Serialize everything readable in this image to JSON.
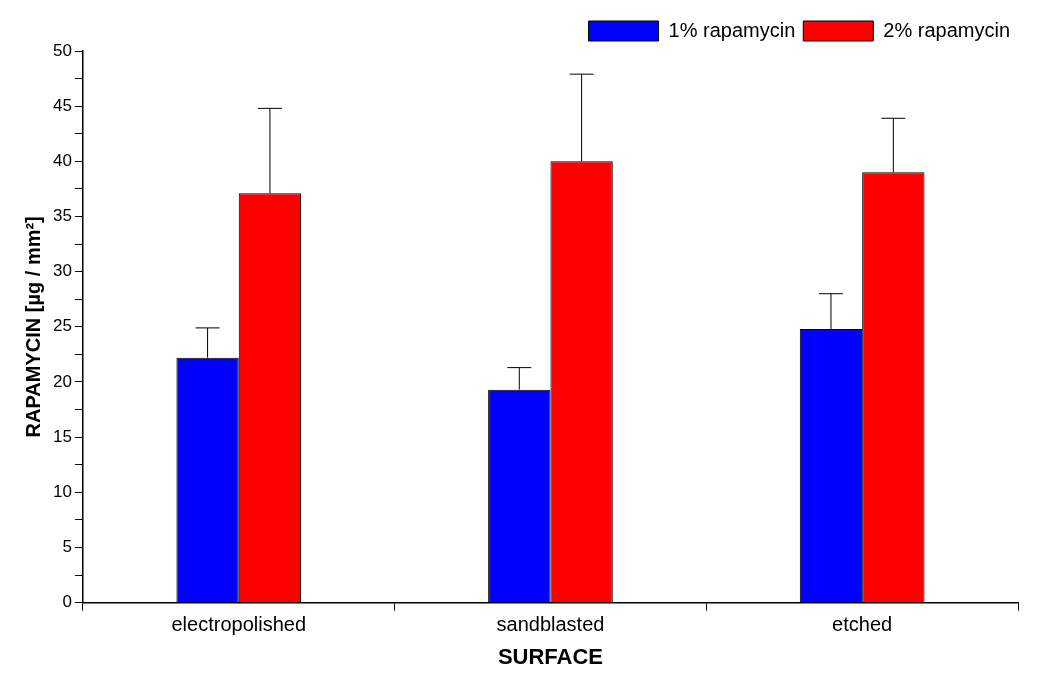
{
  "chart_data": {
    "type": "bar",
    "xlabel": "SURFACE",
    "ylabel": "RAPAMYCIN [µg / mm²]",
    "categories": [
      "electropolished",
      "sandblasted",
      "etched"
    ],
    "series": [
      {
        "name": "1% rapamycin",
        "color": "#0000ff",
        "values": [
          22.2,
          19.3,
          24.8
        ],
        "errors": [
          [
            22.2,
            24.9
          ],
          [
            19.3,
            21.3
          ],
          [
            24.8,
            28.0
          ]
        ]
      },
      {
        "name": "2% rapamycin",
        "color": "#ff0000",
        "values": [
          37.1,
          40.0,
          39.0
        ],
        "errors": [
          [
            37.1,
            44.8
          ],
          [
            40.0,
            47.9
          ],
          [
            39.0,
            43.9
          ]
        ]
      }
    ],
    "ylim": [
      0,
      50
    ],
    "yticks": [
      0,
      {
        "value": 2.5,
        "label": null
      },
      5,
      {
        "value": 7.5,
        "label": null
      },
      10,
      {
        "value": 12.5,
        "label": null
      },
      15,
      {
        "value": 17.5,
        "label": null
      },
      20,
      {
        "value": 22.5,
        "label": null
      },
      25,
      {
        "value": 27.5,
        "label": null
      },
      30,
      {
        "value": 32.5,
        "label": null
      },
      35,
      {
        "value": 37.5,
        "label": null
      },
      40,
      {
        "value": 42.5,
        "label": null
      },
      45,
      {
        "value": 47.5,
        "label": null
      },
      50
    ],
    "grid": false,
    "legend": "top right"
  }
}
